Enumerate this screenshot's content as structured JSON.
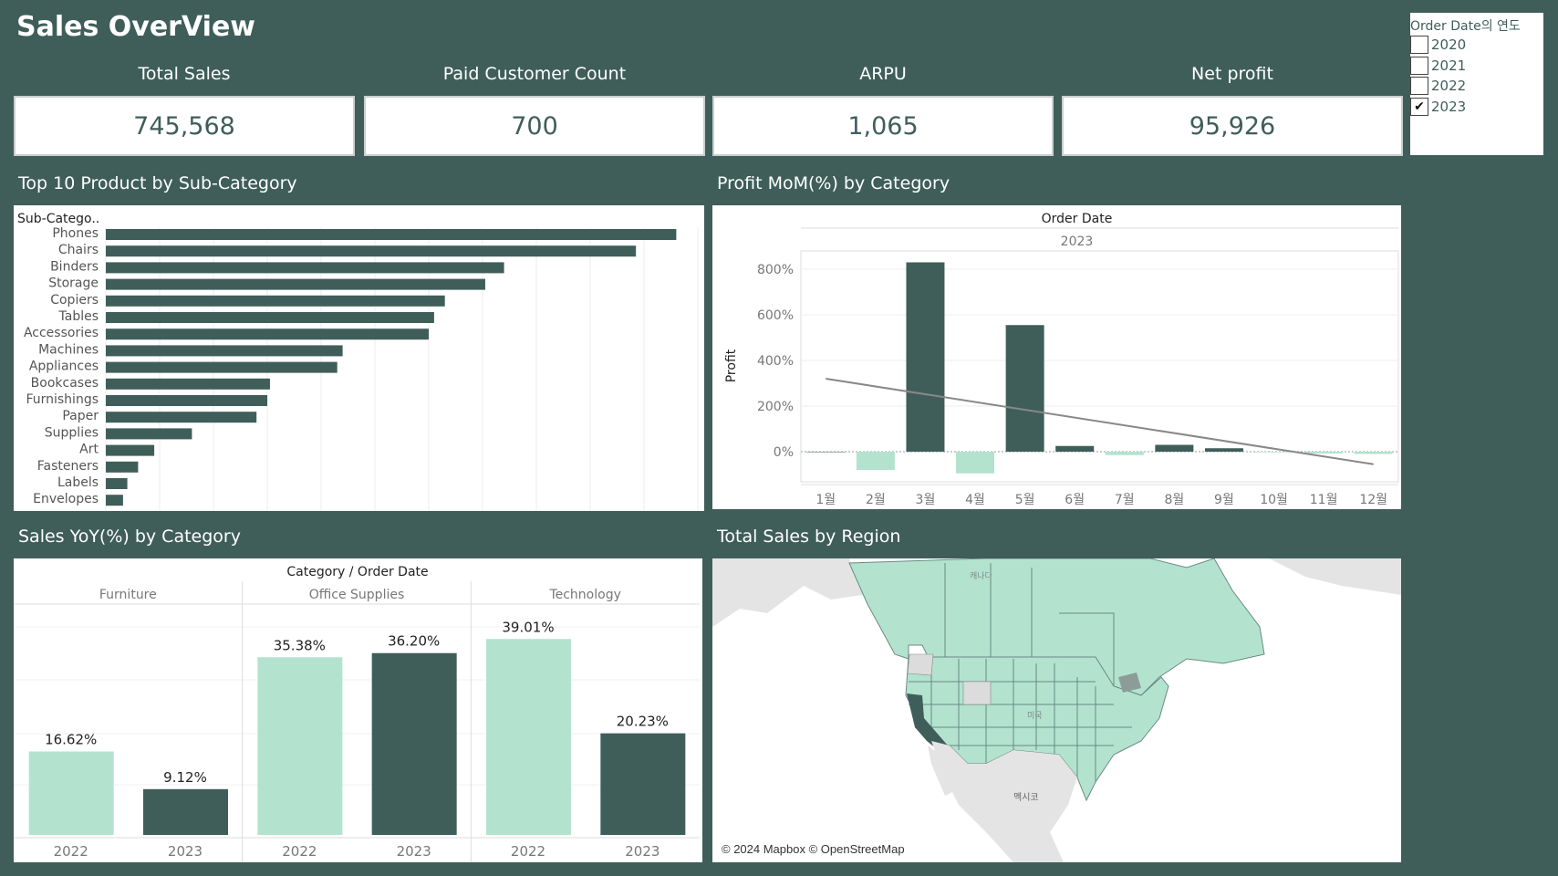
{
  "page_title": "Sales OverView",
  "kpis": [
    {
      "label": "Total Sales",
      "value": "745,568"
    },
    {
      "label": "Paid Customer Count",
      "value": "700"
    },
    {
      "label": "ARPU",
      "value": "1,065"
    },
    {
      "label": "Net profit",
      "value": "95,926"
    }
  ],
  "filter": {
    "title": "Order Date의 연도",
    "options": [
      {
        "label": "2020",
        "checked": false,
        "mark": ""
      },
      {
        "label": "2021",
        "checked": false,
        "mark": ""
      },
      {
        "label": "2022",
        "checked": false,
        "mark": ""
      },
      {
        "label": "2023",
        "checked": true,
        "mark": "✔"
      }
    ]
  },
  "sections": {
    "top10": "Top 10 Product by Sub-Category",
    "mom": "Profit MoM(%) by Category",
    "yoy": "Sales YoY(%) by Category",
    "region": "Total Sales by Region"
  },
  "colors": {
    "dark": "#3f5e5a",
    "light": "#b3e3cf",
    "trend": "#888888"
  },
  "map": {
    "labels": {
      "canada": "캐나다",
      "usa": "미국",
      "mexico": "멕시코"
    },
    "attribution": "© 2024 Mapbox © OpenStreetMap"
  },
  "chart_data": [
    {
      "type": "bar",
      "orientation": "horizontal",
      "header": "Sub-Catego..",
      "categories": [
        "Phones",
        "Chairs",
        "Binders",
        "Storage",
        "Copiers",
        "Tables",
        "Accessories",
        "Machines",
        "Appliances",
        "Bookcases",
        "Furnishings",
        "Paper",
        "Supplies",
        "Art",
        "Fasteners",
        "Labels",
        "Envelopes"
      ],
      "values": [
        106,
        98.5,
        74,
        70.5,
        63,
        61,
        60,
        44,
        43,
        30.5,
        30,
        28,
        16,
        9,
        6,
        4,
        3.2
      ]
    },
    {
      "type": "bar",
      "col_header": "Order Date",
      "col_value": "2023",
      "ylabel": "Profit",
      "categories": [
        "1월",
        "2월",
        "3월",
        "4월",
        "5월",
        "6월",
        "7월",
        "8월",
        "9월",
        "10월",
        "11월",
        "12월"
      ],
      "values": [
        0,
        -80,
        830,
        -95,
        555,
        25,
        -15,
        30,
        15,
        -3,
        -8,
        -10
      ],
      "yticks": [
        "0%",
        "200%",
        "400%",
        "600%",
        "800%"
      ],
      "ylim": [
        -150,
        900
      ],
      "trendline": [
        320,
        -55
      ]
    },
    {
      "type": "bar",
      "col_header": "Category / Order Date",
      "groups": [
        {
          "name": "Furniture",
          "bars": [
            {
              "year": "2022",
              "value": 16.62,
              "label": "16.62%"
            },
            {
              "year": "2023",
              "value": 9.12,
              "label": "9.12%"
            }
          ]
        },
        {
          "name": "Office Supplies",
          "bars": [
            {
              "year": "2022",
              "value": 35.38,
              "label": "35.38%"
            },
            {
              "year": "2023",
              "value": 36.2,
              "label": "36.20%"
            }
          ]
        },
        {
          "name": "Technology",
          "bars": [
            {
              "year": "2022",
              "value": 39.01,
              "label": "39.01%"
            },
            {
              "year": "2023",
              "value": 20.23,
              "label": "20.23%"
            }
          ]
        }
      ],
      "ylim": [
        0,
        44
      ]
    }
  ]
}
